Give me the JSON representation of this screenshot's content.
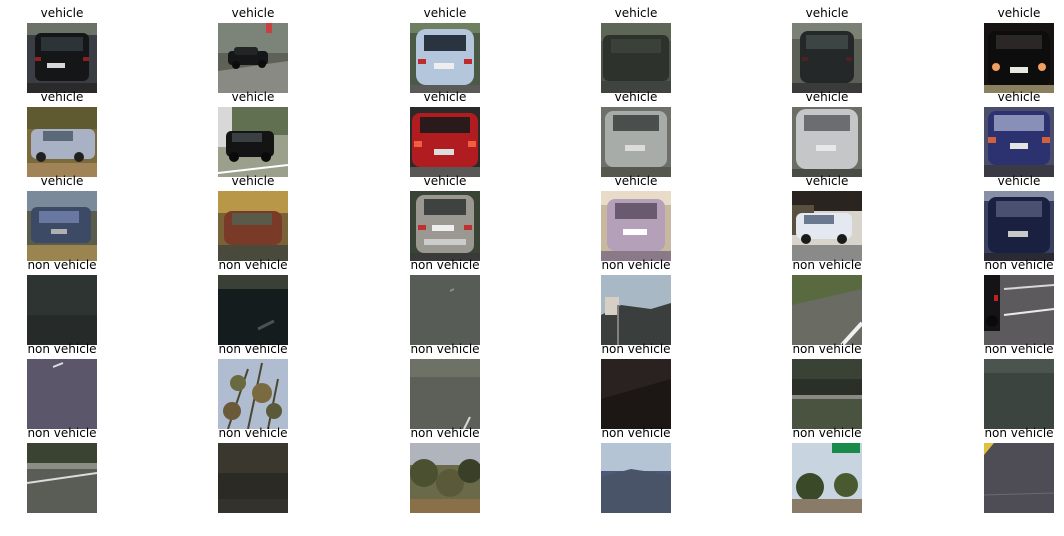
{
  "figure": {
    "rows": [
      [
        {
          "title": "vehicle",
          "subject": "rear view of dark car on road"
        },
        {
          "title": "vehicle",
          "subject": "dark car on road side view"
        },
        {
          "title": "vehicle",
          "subject": "rear view of light silver car"
        },
        {
          "title": "vehicle",
          "subject": "rear of dark car close-up"
        },
        {
          "title": "vehicle",
          "subject": "rear view of dark car on road"
        },
        {
          "title": "vehicle",
          "subject": "rear of black car at night-like lighting"
        }
      ],
      [
        {
          "title": "vehicle",
          "subject": "silver car side view on dirt"
        },
        {
          "title": "vehicle",
          "subject": "black car parked among trees"
        },
        {
          "title": "vehicle",
          "subject": "rear view of red car"
        },
        {
          "title": "vehicle",
          "subject": "rear of grey car close-up"
        },
        {
          "title": "vehicle",
          "subject": "rear of white car blurred"
        },
        {
          "title": "vehicle",
          "subject": "rear of dark blue car blurred"
        }
      ],
      [
        {
          "title": "vehicle",
          "subject": "blurred car on road"
        },
        {
          "title": "vehicle",
          "subject": "very blurred red car"
        },
        {
          "title": "vehicle",
          "subject": "rear of silver car on road"
        },
        {
          "title": "vehicle",
          "subject": "rear of white car overexposed"
        },
        {
          "title": "vehicle",
          "subject": "white car side with building"
        },
        {
          "title": "vehicle",
          "subject": "rear of dark blue car"
        }
      ],
      [
        {
          "title": "non vehicle",
          "subject": "dark road surface"
        },
        {
          "title": "non vehicle",
          "subject": "dark asphalt texture"
        },
        {
          "title": "non vehicle",
          "subject": "grey road surface"
        },
        {
          "title": "non vehicle",
          "subject": "sky and hillside with sign"
        },
        {
          "title": "non vehicle",
          "subject": "road edge with lane line"
        },
        {
          "title": "non vehicle",
          "subject": "road with partial car edge"
        }
      ],
      [
        {
          "title": "non vehicle",
          "subject": "purple-grey road with lane mark"
        },
        {
          "title": "non vehicle",
          "subject": "tree branches against sky"
        },
        {
          "title": "non vehicle",
          "subject": "road with lane line"
        },
        {
          "title": "non vehicle",
          "subject": "dark shadowed surface"
        },
        {
          "title": "non vehicle",
          "subject": "guardrail and vegetation"
        },
        {
          "title": "non vehicle",
          "subject": "dark grey road surface"
        }
      ],
      [
        {
          "title": "non vehicle",
          "subject": "road with guardrail"
        },
        {
          "title": "non vehicle",
          "subject": "dark blurred roadside"
        },
        {
          "title": "non vehicle",
          "subject": "trees and hillside"
        },
        {
          "title": "non vehicle",
          "subject": "sky over hills"
        },
        {
          "title": "non vehicle",
          "subject": "trees with green road sign"
        },
        {
          "title": "non vehicle",
          "subject": "dark road with yellow corner"
        }
      ]
    ]
  },
  "colors": {
    "background": "#ffffff",
    "title_text": "#000000"
  }
}
